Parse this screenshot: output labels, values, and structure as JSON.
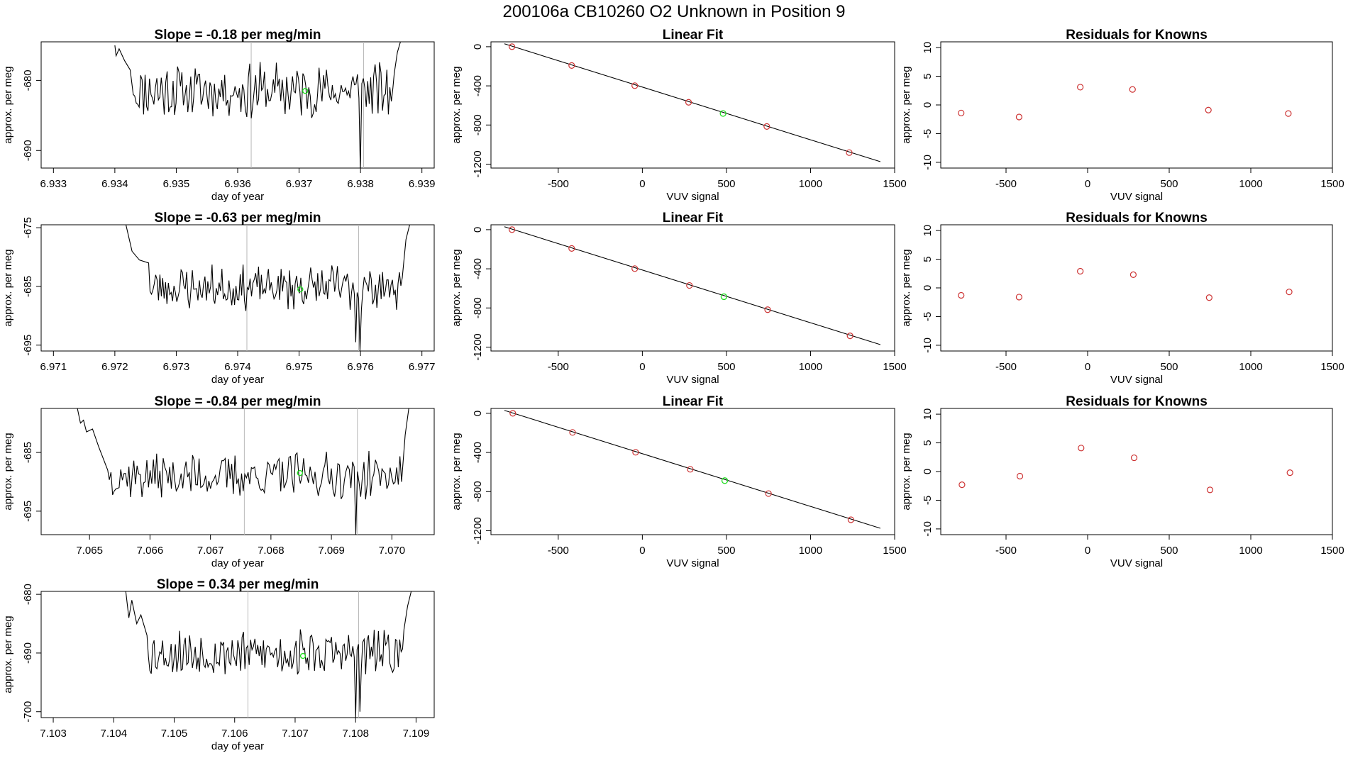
{
  "page": {
    "title": "200106a      CB10260    O2 Unknown in Position  9"
  },
  "colors": {
    "line": "#000000",
    "known_point": "#cd3333",
    "unknown_point": "#22dd22",
    "vline": "#b8b8b8",
    "axis": "#000000"
  },
  "chart_data": [
    {
      "type": "line",
      "row": 0,
      "col": 0,
      "title": "Slope =  -0.18  per meg/min",
      "xlabel": "day of year",
      "ylabel": "approx. per meg",
      "xlim": [
        6.9328,
        6.9392
      ],
      "ylim": [
        -692.5,
        -674.5
      ],
      "xticks": [
        6.933,
        6.934,
        6.935,
        6.936,
        6.937,
        6.938,
        6.939
      ],
      "xtick_labels": [
        "6.933",
        "6.934",
        "6.935",
        "6.936",
        "6.937",
        "6.938",
        "6.939"
      ],
      "yticks": [
        -680,
        -690
      ],
      "ytick_labels": [
        "-680",
        "-690"
      ],
      "x_start": 6.934,
      "x_end": 6.9388,
      "vlines": [
        6.93622,
        6.93805
      ],
      "highlight": {
        "x": 6.9371,
        "y": -681.5
      },
      "series": [
        {
          "name": "approx. per meg",
          "x_start": 6.934,
          "x_end": 6.9388,
          "seed": 11,
          "base": -681.5,
          "amp": 3.3,
          "dips": [
            [
              6.938,
              -693.0
            ]
          ],
          "edges": [
            [
              6.934,
              -675.0
            ],
            [
              6.93402,
              -676.5
            ],
            [
              6.93407,
              -675.5
            ],
            [
              6.93416,
              -677.2
            ],
            [
              6.93425,
              -678.5
            ],
            [
              6.9343,
              -682.0
            ]
          ],
          "right_edge": [
            [
              6.93855,
              -679.0
            ],
            [
              6.9386,
              -676.0
            ],
            [
              6.93865,
              -674.5
            ]
          ]
        }
      ]
    },
    {
      "type": "scatter+line",
      "row": 0,
      "col": 1,
      "title": "Linear Fit",
      "xlabel": "VUV signal",
      "ylabel": "approx. per meg",
      "xlim": [
        -900,
        1500
      ],
      "ylim": [
        -1240,
        50
      ],
      "xticks": [
        -500,
        0,
        500,
        1000,
        1500
      ],
      "xtick_labels": [
        "-500",
        "0",
        "500",
        "1000",
        "1500"
      ],
      "yticks": [
        0,
        -400,
        -800,
        -1200
      ],
      "ytick_labels": [
        "0",
        "-400",
        "-800",
        "-1200"
      ],
      "fit_line": {
        "x": [
          -820,
          1415
        ],
        "y": [
          30,
          -1175
        ]
      },
      "known": {
        "x": [
          -775,
          -420,
          -45,
          275,
          740,
          1230
        ],
        "y": [
          0,
          -192,
          -398,
          -568,
          -815,
          -1082
        ]
      },
      "unknown": {
        "x": [
          480
        ],
        "y": [
          -682
        ]
      }
    },
    {
      "type": "scatter",
      "row": 0,
      "col": 2,
      "title": "Residuals for Knowns",
      "xlabel": "VUV signal",
      "ylabel": "approx. per meg",
      "xlim": [
        -900,
        1500
      ],
      "ylim": [
        -11,
        11
      ],
      "xticks": [
        -500,
        0,
        500,
        1000,
        1500
      ],
      "xtick_labels": [
        "-500",
        "0",
        "500",
        "1000",
        "1500"
      ],
      "yticks": [
        10,
        5,
        0,
        -5,
        -10
      ],
      "ytick_labels": [
        "10",
        "5",
        "0",
        "-5",
        "-10"
      ],
      "points": {
        "x": [
          -775,
          -420,
          -45,
          275,
          740,
          1230
        ],
        "y": [
          -1.4,
          -2.1,
          3.1,
          2.7,
          -0.9,
          -1.5
        ]
      }
    },
    {
      "type": "line",
      "row": 1,
      "col": 0,
      "title": "Slope =  -0.63  per meg/min",
      "xlabel": "day of year",
      "ylabel": "approx. per meg",
      "xlim": [
        6.9708,
        6.9772
      ],
      "ylim": [
        -696,
        -674.5
      ],
      "xticks": [
        6.971,
        6.972,
        6.973,
        6.974,
        6.975,
        6.976,
        6.977
      ],
      "xtick_labels": [
        "6.971",
        "6.972",
        "6.973",
        "6.974",
        "6.975",
        "6.976",
        "6.977"
      ],
      "yticks": [
        -675,
        -685,
        -695
      ],
      "ytick_labels": [
        "-675",
        "-685",
        "-695"
      ],
      "vlines": [
        6.97415,
        6.97597
      ],
      "highlight": {
        "x": 6.97502,
        "y": -685.5
      },
      "series": [
        {
          "name": "approx. per meg",
          "x_start": 6.9722,
          "x_end": 6.9768,
          "seed": 23,
          "base": -685.2,
          "amp": 3.2,
          "dips": [
            [
              6.97593,
              -694.5
            ],
            [
              6.976,
              -696.0
            ]
          ],
          "edges": [
            [
              6.97218,
              -674.5
            ],
            [
              6.97228,
              -679.0
            ],
            [
              6.9724,
              -680.5
            ],
            [
              6.97255,
              -681.0
            ]
          ],
          "right_edge": [
            [
              6.97668,
              -683.5
            ],
            [
              6.97674,
              -677.0
            ],
            [
              6.9768,
              -674.5
            ]
          ]
        }
      ]
    },
    {
      "type": "scatter+line",
      "row": 1,
      "col": 1,
      "title": "Linear Fit",
      "xlabel": "VUV signal",
      "ylabel": "approx. per meg",
      "xlim": [
        -900,
        1500
      ],
      "ylim": [
        -1240,
        50
      ],
      "xticks": [
        -500,
        0,
        500,
        1000,
        1500
      ],
      "xtick_labels": [
        "-500",
        "0",
        "500",
        "1000",
        "1500"
      ],
      "yticks": [
        0,
        -400,
        -800,
        -1200
      ],
      "ytick_labels": [
        "0",
        "-400",
        "-800",
        "-1200"
      ],
      "fit_line": {
        "x": [
          -820,
          1415
        ],
        "y": [
          30,
          -1175
        ]
      },
      "known": {
        "x": [
          -775,
          -420,
          -45,
          280,
          745,
          1235
        ],
        "y": [
          0,
          -192,
          -398,
          -570,
          -818,
          -1085
        ]
      },
      "unknown": {
        "x": [
          485
        ],
        "y": [
          -685
        ]
      }
    },
    {
      "type": "scatter",
      "row": 1,
      "col": 2,
      "title": "Residuals for Knowns",
      "xlabel": "VUV signal",
      "ylabel": "approx. per meg",
      "xlim": [
        -900,
        1500
      ],
      "ylim": [
        -11,
        11
      ],
      "xticks": [
        -500,
        0,
        500,
        1000,
        1500
      ],
      "xtick_labels": [
        "-500",
        "0",
        "500",
        "1000",
        "1500"
      ],
      "yticks": [
        10,
        5,
        0,
        -5,
        -10
      ],
      "ytick_labels": [
        "10",
        "5",
        "0",
        "-5",
        "-10"
      ],
      "points": {
        "x": [
          -775,
          -420,
          -45,
          280,
          745,
          1235
        ],
        "y": [
          -1.3,
          -1.6,
          2.9,
          2.3,
          -1.7,
          -0.7
        ]
      }
    },
    {
      "type": "line",
      "row": 2,
      "col": 0,
      "title": "Slope =  -0.84  per meg/min",
      "xlabel": "day of year",
      "ylabel": "approx. per meg",
      "xlim": [
        7.0642,
        7.0707
      ],
      "ylim": [
        -699,
        -677.5
      ],
      "xticks": [
        7.065,
        7.066,
        7.067,
        7.068,
        7.069,
        7.07
      ],
      "xtick_labels": [
        "7.065",
        "7.066",
        "7.067",
        "7.068",
        "7.069",
        "7.070"
      ],
      "yticks": [
        -685,
        -695
      ],
      "ytick_labels": [
        "-685",
        "-695"
      ],
      "vlines": [
        7.06756,
        7.06943
      ],
      "highlight": {
        "x": 7.06848,
        "y": -688.5
      },
      "series": [
        {
          "name": "approx. per meg",
          "x_start": 7.0648,
          "x_end": 7.0702,
          "seed": 37,
          "base": -689.0,
          "amp": 3.3,
          "dips": [
            [
              7.0694,
              -699.0
            ]
          ],
          "edges": [
            [
              7.0648,
              -677.5
            ],
            [
              7.06485,
              -680.0
            ],
            [
              7.0649,
              -679.5
            ],
            [
              7.06495,
              -681.5
            ],
            [
              7.06505,
              -681.0
            ],
            [
              7.06515,
              -684.0
            ],
            [
              7.0653,
              -688.0
            ]
          ],
          "right_edge": [
            [
              7.07016,
              -690.0
            ],
            [
              7.07022,
              -682.0
            ],
            [
              7.07028,
              -677.5
            ]
          ]
        }
      ]
    },
    {
      "type": "scatter+line",
      "row": 2,
      "col": 1,
      "title": "Linear Fit",
      "xlabel": "VUV signal",
      "ylabel": "approx. per meg",
      "xlim": [
        -900,
        1500
      ],
      "ylim": [
        -1240,
        50
      ],
      "xticks": [
        -500,
        0,
        500,
        1000,
        1500
      ],
      "xtick_labels": [
        "-500",
        "0",
        "500",
        "1000",
        "1500"
      ],
      "yticks": [
        0,
        -400,
        -800,
        -1200
      ],
      "ytick_labels": [
        "0",
        "-400",
        "-800",
        "-1200"
      ],
      "fit_line": {
        "x": [
          -820,
          1415
        ],
        "y": [
          30,
          -1175
        ]
      },
      "known": {
        "x": [
          -770,
          -415,
          -40,
          285,
          750,
          1240
        ],
        "y": [
          0,
          -195,
          -398,
          -572,
          -820,
          -1088
        ]
      },
      "unknown": {
        "x": [
          490
        ],
        "y": [
          -688
        ]
      }
    },
    {
      "type": "scatter",
      "row": 2,
      "col": 2,
      "title": "Residuals for Knowns",
      "xlabel": "VUV signal",
      "ylabel": "approx. per meg",
      "xlim": [
        -900,
        1500
      ],
      "ylim": [
        -11,
        11
      ],
      "xticks": [
        -500,
        0,
        500,
        1000,
        1500
      ],
      "xtick_labels": [
        "-500",
        "0",
        "500",
        "1000",
        "1500"
      ],
      "yticks": [
        10,
        5,
        0,
        -5,
        -10
      ],
      "ytick_labels": [
        "10",
        "5",
        "0",
        "-5",
        "-10"
      ],
      "points": {
        "x": [
          -770,
          -415,
          -40,
          285,
          750,
          1240
        ],
        "y": [
          -2.3,
          -0.8,
          4.1,
          2.4,
          -3.2,
          -0.2
        ]
      }
    },
    {
      "type": "line",
      "row": 3,
      "col": 0,
      "title": "Slope =  0.34  per meg/min",
      "xlabel": "day of year",
      "ylabel": "approx. per meg",
      "xlim": [
        7.1028,
        7.1093
      ],
      "ylim": [
        -701,
        -679.5
      ],
      "xticks": [
        7.103,
        7.104,
        7.105,
        7.106,
        7.107,
        7.108,
        7.109
      ],
      "xtick_labels": [
        "7.103",
        "7.104",
        "7.105",
        "7.106",
        "7.107",
        "7.108",
        "7.109"
      ],
      "yticks": [
        -680,
        -690,
        -700
      ],
      "ytick_labels": [
        "-680",
        "-690",
        "-700"
      ],
      "vlines": [
        7.10622,
        7.10805
      ],
      "highlight": {
        "x": 7.10713,
        "y": -690.5
      },
      "series": [
        {
          "name": "approx. per meg",
          "x_start": 7.1042,
          "x_end": 7.1089,
          "seed": 53,
          "base": -690.0,
          "amp": 3.3,
          "dips": [
            [
              7.108,
              -701.0
            ],
            [
              7.10808,
              -700.0
            ]
          ],
          "edges": [
            [
              7.1042,
              -679.5
            ],
            [
              7.10425,
              -684.0
            ],
            [
              7.1043,
              -681.0
            ],
            [
              7.10438,
              -685.0
            ],
            [
              7.10445,
              -683.5
            ],
            [
              7.10455,
              -687.0
            ]
          ],
          "right_edge": [
            [
              7.1088,
              -686.0
            ],
            [
              7.10886,
              -682.0
            ],
            [
              7.10892,
              -679.5
            ]
          ]
        }
      ]
    }
  ]
}
